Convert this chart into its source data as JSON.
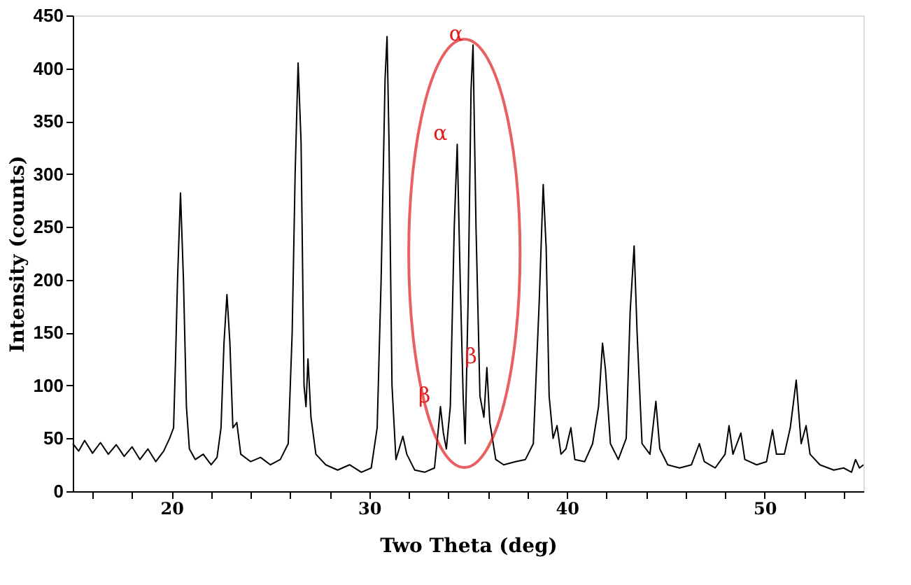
{
  "chart_data": {
    "type": "line",
    "xlabel": "Two Theta (deg)",
    "ylabel": "Intensity (counts)",
    "xlim": [
      15,
      55
    ],
    "ylim": [
      0,
      450
    ],
    "xticks": [
      {
        "value": 16,
        "label": null
      },
      {
        "value": 18,
        "label": null
      },
      20,
      {
        "value": 22,
        "label": null
      },
      {
        "value": 24,
        "label": null
      },
      {
        "value": 26,
        "label": null
      },
      {
        "value": 28,
        "label": null
      },
      30,
      {
        "value": 32,
        "label": null
      },
      {
        "value": 34,
        "label": null
      },
      {
        "value": 36,
        "label": null
      },
      {
        "value": 38,
        "label": null
      },
      40,
      {
        "value": 42,
        "label": null
      },
      {
        "value": 44,
        "label": null
      },
      {
        "value": 46,
        "label": null
      },
      {
        "value": 48,
        "label": null
      },
      50,
      {
        "value": 52,
        "label": null
      },
      {
        "value": 54,
        "label": null
      }
    ],
    "yticks": [
      0,
      50,
      100,
      150,
      200,
      250,
      300,
      350,
      400,
      450
    ],
    "grid": false,
    "marker": "none",
    "line_style": "solid",
    "annotations": [
      {
        "text": "β",
        "x": 33.6,
        "y": 80
      },
      {
        "text": "α",
        "x": 34.45,
        "y": 328
      },
      {
        "text": "α",
        "x": 35.25,
        "y": 422
      },
      {
        "text": "β",
        "x": 35.95,
        "y": 117
      }
    ],
    "series": [
      {
        "color": "#000000",
        "x": [
          15,
          15.3,
          15.6,
          16,
          16.4,
          16.8,
          17.2,
          17.6,
          18,
          18.4,
          18.8,
          19.2,
          19.6,
          19.9,
          20.1,
          20.2,
          20.3,
          20.45,
          20.6,
          20.75,
          20.9,
          21.2,
          21.6,
          22,
          22.3,
          22.5,
          22.65,
          22.8,
          22.95,
          23.1,
          23.3,
          23.5,
          24,
          24.5,
          25,
          25.5,
          25.9,
          26.1,
          26.25,
          26.4,
          26.55,
          26.7,
          26.8,
          26.9,
          27.05,
          27.3,
          27.8,
          28.4,
          29,
          29.6,
          30.1,
          30.4,
          30.6,
          30.8,
          30.9,
          31.0,
          31.15,
          31.35,
          31.7,
          31.9,
          32.3,
          32.8,
          33.3,
          33.5,
          33.6,
          33.75,
          33.9,
          34.1,
          34.3,
          34.45,
          34.6,
          34.75,
          34.85,
          35.0,
          35.15,
          35.25,
          35.4,
          35.6,
          35.8,
          35.95,
          36.1,
          36.4,
          36.8,
          37.4,
          37.9,
          38.3,
          38.6,
          38.8,
          38.95,
          39.1,
          39.3,
          39.5,
          39.7,
          39.95,
          40.2,
          40.4,
          40.9,
          41.3,
          41.6,
          41.8,
          41.95,
          42.2,
          42.6,
          43.0,
          43.2,
          43.4,
          43.55,
          43.8,
          44.2,
          44.5,
          44.7,
          45.1,
          45.7,
          46.3,
          46.7,
          46.95,
          47.5,
          48.0,
          48.2,
          48.4,
          48.8,
          49.0,
          49.6,
          50.1,
          50.4,
          50.6,
          51.0,
          51.3,
          51.6,
          51.85,
          52.1,
          52.3,
          52.8,
          53.5,
          54.0,
          54.4,
          54.6,
          54.8,
          55
        ],
        "values": [
          45,
          38,
          48,
          36,
          46,
          35,
          44,
          33,
          42,
          30,
          40,
          28,
          38,
          50,
          60,
          125,
          200,
          282,
          200,
          80,
          40,
          30,
          35,
          25,
          32,
          60,
          140,
          186,
          140,
          60,
          65,
          35,
          28,
          32,
          25,
          30,
          45,
          150,
          300,
          405,
          330,
          100,
          80,
          125,
          70,
          35,
          25,
          20,
          25,
          18,
          22,
          60,
          200,
          390,
          430,
          330,
          100,
          30,
          52,
          35,
          20,
          18,
          22,
          60,
          80,
          55,
          40,
          80,
          250,
          328,
          200,
          90,
          45,
          180,
          380,
          422,
          250,
          90,
          70,
          117,
          65,
          30,
          25,
          28,
          30,
          45,
          180,
          290,
          230,
          90,
          50,
          62,
          35,
          40,
          60,
          30,
          28,
          45,
          80,
          140,
          115,
          45,
          30,
          50,
          170,
          232,
          150,
          45,
          35,
          85,
          40,
          25,
          22,
          25,
          45,
          28,
          22,
          35,
          62,
          35,
          55,
          30,
          25,
          28,
          58,
          35,
          35,
          60,
          105,
          45,
          62,
          35,
          25,
          20,
          22,
          18,
          30,
          22,
          25
        ]
      }
    ]
  }
}
